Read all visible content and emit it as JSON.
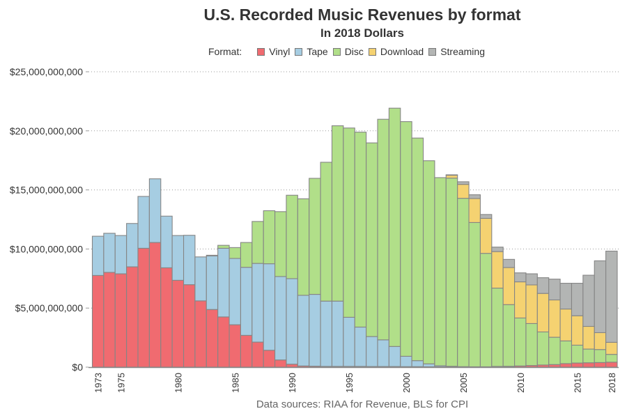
{
  "chart_data": {
    "type": "bar",
    "stacked": true,
    "title": "U.S. Recorded Music Revenues by format",
    "subtitle": "In 2018 Dollars",
    "caption": "Data sources: RIAA for Revenue, BLS for CPI",
    "legend_title": "Format:",
    "legend_position": "top",
    "xlabel": "",
    "ylabel": "",
    "ylim": [
      0,
      25000000000
    ],
    "y_ticks": [
      0,
      5000000000,
      10000000000,
      15000000000,
      20000000000,
      25000000000
    ],
    "y_tick_labels": [
      "$0",
      "$5,000,000,000",
      "$10,000,000,000",
      "$15,000,000,000",
      "$20,000,000,000",
      "$25,000,000,000"
    ],
    "grid": "horizontal dotted",
    "x_tick_labels": [
      "1973",
      "1975",
      "1980",
      "1985",
      "1990",
      "1995",
      "2000",
      "2005",
      "2010",
      "2015",
      "2018"
    ],
    "value_unit": "billions USD (2018 dollars)",
    "categories": [
      "1973",
      "1974",
      "1975",
      "1976",
      "1977",
      "1978",
      "1979",
      "1980",
      "1981",
      "1982",
      "1983",
      "1984",
      "1985",
      "1986",
      "1987",
      "1988",
      "1989",
      "1990",
      "1991",
      "1992",
      "1993",
      "1994",
      "1995",
      "1996",
      "1997",
      "1998",
      "1999",
      "2000",
      "2001",
      "2002",
      "2003",
      "2004",
      "2005",
      "2006",
      "2007",
      "2008",
      "2009",
      "2010",
      "2011",
      "2012",
      "2013",
      "2014",
      "2015",
      "2016",
      "2017",
      "2018"
    ],
    "series": [
      {
        "name": "Vinyl",
        "color": "#f06b70",
        "values": [
          7.76,
          8.02,
          7.9,
          8.49,
          10.06,
          10.55,
          8.41,
          7.35,
          6.98,
          5.61,
          4.88,
          4.25,
          3.59,
          2.69,
          2.12,
          1.43,
          0.61,
          0.25,
          0.1,
          0.08,
          0.06,
          0.06,
          0.06,
          0.06,
          0.05,
          0.05,
          0.05,
          0.04,
          0.04,
          0.03,
          0.03,
          0.03,
          0.02,
          0.02,
          0.03,
          0.06,
          0.07,
          0.1,
          0.14,
          0.18,
          0.22,
          0.3,
          0.35,
          0.37,
          0.39,
          0.42
        ]
      },
      {
        "name": "Tape",
        "color": "#a6cde2",
        "values": [
          3.32,
          3.31,
          3.24,
          3.67,
          4.39,
          5.39,
          4.37,
          3.79,
          4.18,
          3.72,
          4.54,
          5.81,
          5.61,
          5.76,
          6.66,
          7.32,
          7.06,
          7.24,
          5.98,
          6.08,
          5.53,
          5.53,
          4.16,
          3.33,
          2.54,
          2.26,
          1.7,
          0.88,
          0.51,
          0.25,
          0.09,
          0.04,
          0.02,
          0.01,
          0,
          0,
          0,
          0,
          0,
          0,
          0,
          0,
          0,
          0,
          0,
          0
        ]
      },
      {
        "name": "Disc",
        "color": "#b1df89",
        "values": [
          0,
          0,
          0,
          0,
          0,
          0,
          0,
          0,
          0,
          0,
          0.05,
          0.25,
          0.92,
          2.1,
          3.55,
          4.49,
          5.49,
          7.06,
          8.17,
          9.82,
          11.75,
          14.84,
          16.02,
          16.5,
          16.39,
          18.67,
          20.17,
          19.86,
          18.84,
          17.19,
          15.92,
          15.93,
          14.25,
          12.21,
          9.6,
          6.63,
          5.22,
          4.06,
          3.55,
          2.8,
          2.31,
          1.92,
          1.51,
          1.16,
          1.1,
          0.66
        ]
      },
      {
        "name": "Download",
        "color": "#f5d271",
        "values": [
          0,
          0,
          0,
          0,
          0,
          0,
          0,
          0,
          0,
          0,
          0,
          0,
          0,
          0,
          0,
          0,
          0,
          0,
          0,
          0,
          0,
          0,
          0,
          0,
          0,
          0,
          0,
          0,
          0,
          0,
          0,
          0.24,
          1.18,
          2.03,
          2.96,
          3.09,
          3.14,
          3.06,
          3.27,
          3.26,
          3.16,
          2.7,
          2.49,
          1.92,
          1.43,
          1.02
        ]
      },
      {
        "name": "Streaming",
        "color": "#b3b5b4",
        "values": [
          0,
          0,
          0,
          0,
          0,
          0,
          0,
          0,
          0,
          0,
          0,
          0,
          0,
          0,
          0,
          0,
          0,
          0,
          0,
          0,
          0,
          0,
          0,
          0,
          0,
          0,
          0,
          0,
          0,
          0,
          0,
          0.04,
          0.22,
          0.32,
          0.33,
          0.38,
          0.69,
          0.76,
          0.94,
          1.33,
          1.76,
          2.18,
          2.75,
          4.33,
          6.08,
          7.72
        ]
      }
    ]
  }
}
